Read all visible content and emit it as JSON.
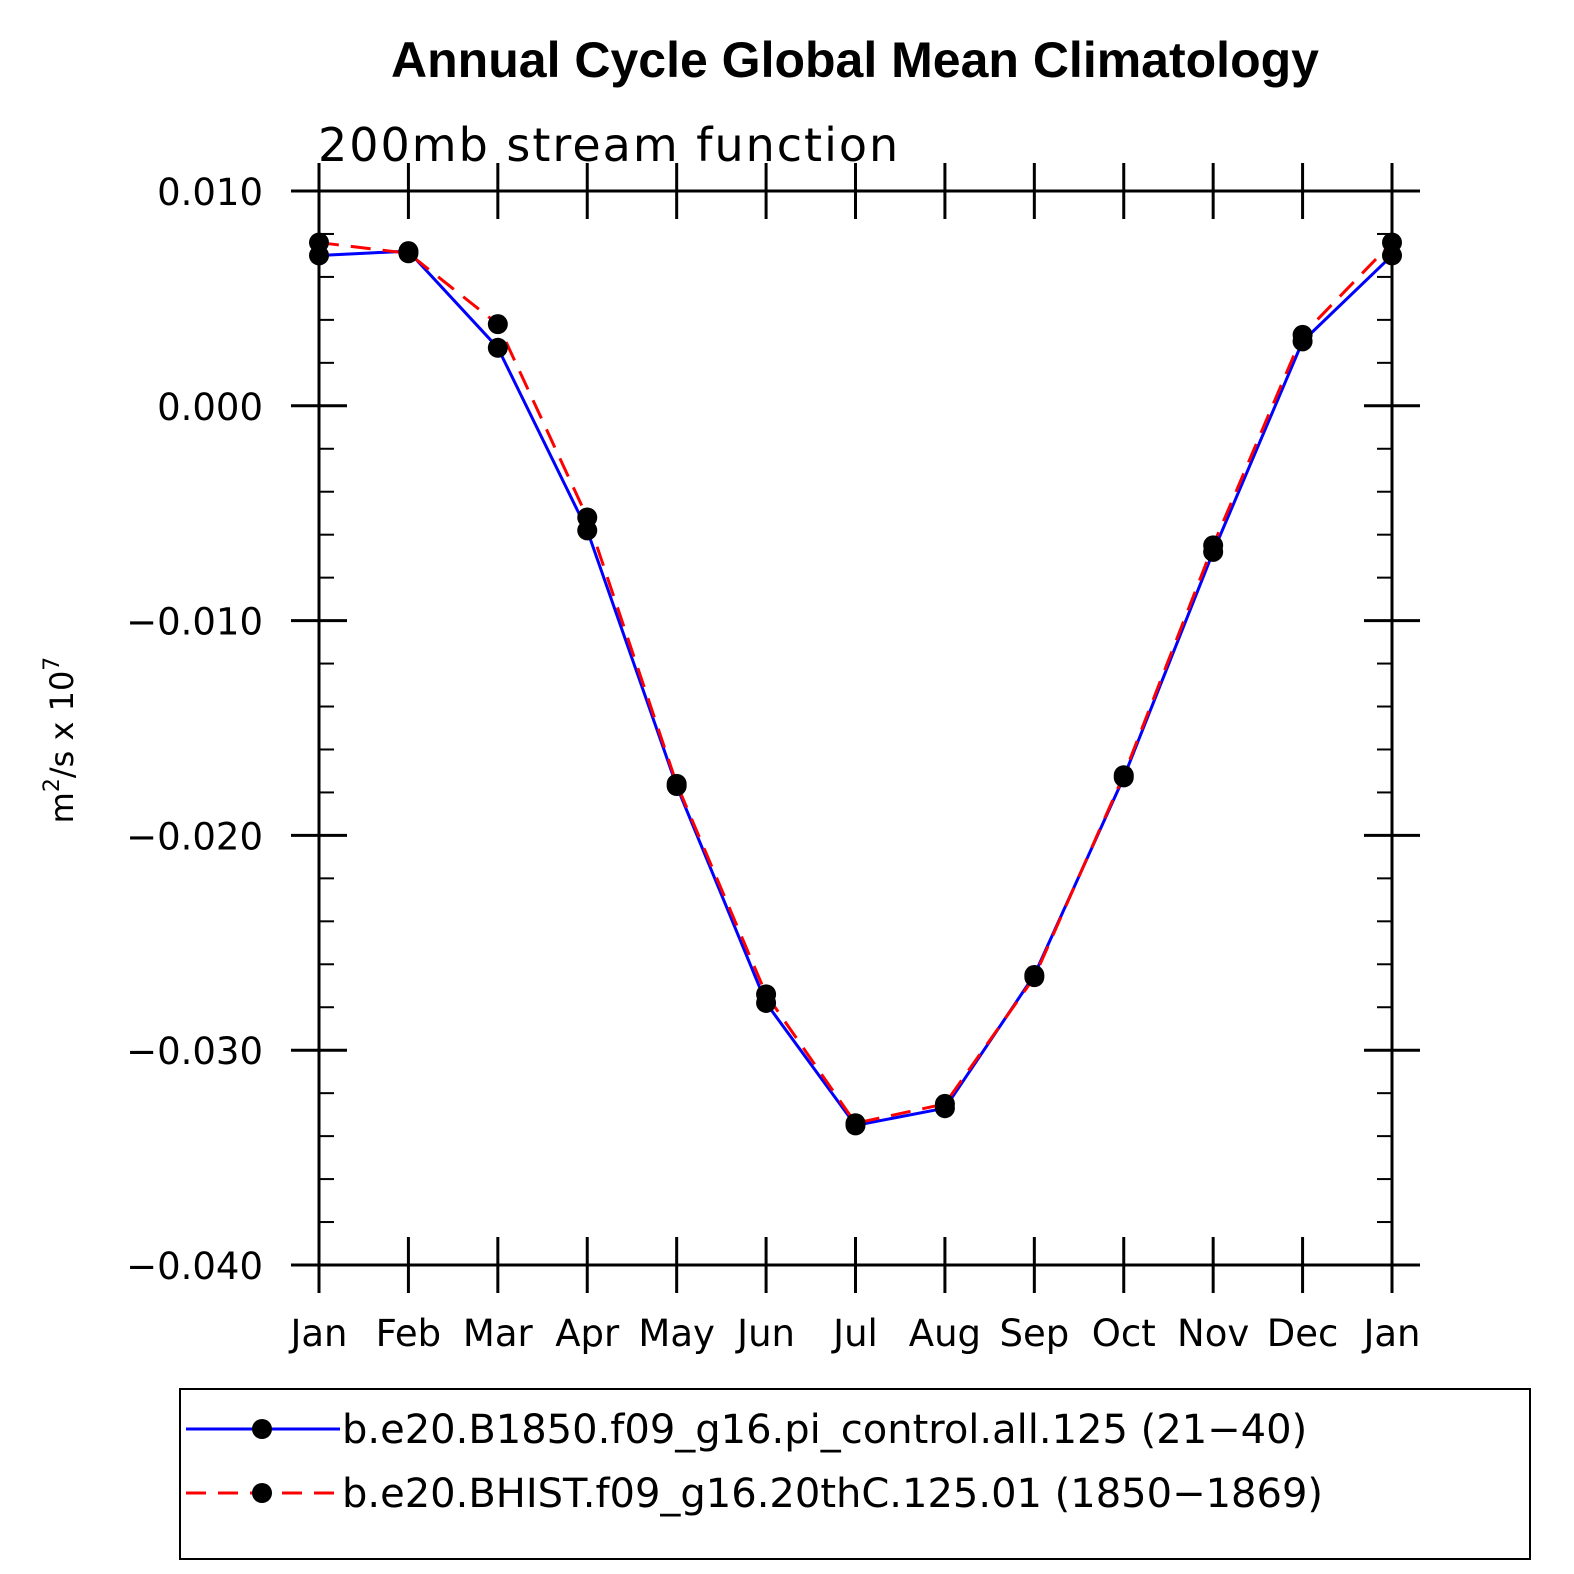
{
  "chart_data": {
    "type": "line",
    "title": "Annual Cycle Global Mean Climatology",
    "subtitle": "200mb stream function",
    "ylabel": "m²/s x 10⁷",
    "ylabel_base": "m",
    "ylabel_sup1": "2",
    "ylabel_mid": "/s x 10",
    "ylabel_sup2": "7",
    "ylim": [
      -0.04,
      0.01
    ],
    "yticks": [
      0.01,
      0.0,
      -0.01,
      -0.02,
      -0.03,
      -0.04
    ],
    "ytick_labels": [
      "0.010",
      "0.000",
      "−0.010",
      "−0.020",
      "−0.030",
      "−0.040"
    ],
    "categories": [
      "Jan",
      "Feb",
      "Mar",
      "Apr",
      "May",
      "Jun",
      "Jul",
      "Aug",
      "Sep",
      "Oct",
      "Nov",
      "Dec",
      "Jan"
    ],
    "series": [
      {
        "name": "b.e20.B1850.f09_g16.pi_control.all.125 (21−40)",
        "color": "#0000ff",
        "style": "solid",
        "values": [
          0.007,
          0.0072,
          0.0027,
          -0.0058,
          -0.0177,
          -0.0278,
          -0.0335,
          -0.0327,
          -0.0265,
          -0.0173,
          -0.0068,
          0.003,
          0.007
        ]
      },
      {
        "name": "b.e20.BHIST.f09_g16.20thC.125.01 (1850−1869)",
        "color": "#ff0000",
        "style": "dashed",
        "values": [
          0.0076,
          0.0071,
          0.0038,
          -0.0052,
          -0.0176,
          -0.0274,
          -0.0334,
          -0.0325,
          -0.0266,
          -0.0172,
          -0.0065,
          0.0033,
          0.0076
        ]
      }
    ],
    "legend_position": "bottom",
    "grid": false
  }
}
